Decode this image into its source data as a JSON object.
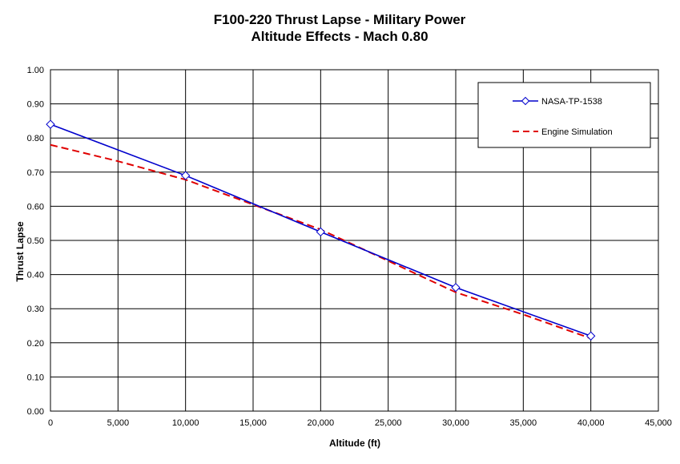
{
  "chart_data": {
    "type": "line",
    "title": "F100-220 Thrust Lapse - Military Power",
    "subtitle": "Altitude Effects - Mach 0.80",
    "xlabel": "Altitude (ft)",
    "ylabel": "Thrust Lapse",
    "xlim": [
      0,
      45000
    ],
    "ylim": [
      0,
      1.0
    ],
    "x_ticks": [
      0,
      5000,
      10000,
      15000,
      20000,
      25000,
      30000,
      35000,
      40000,
      45000
    ],
    "x_tick_labels": [
      "0",
      "5,000",
      "10,000",
      "15,000",
      "20,000",
      "25,000",
      "30,000",
      "35,000",
      "40,000",
      "45,000"
    ],
    "y_ticks": [
      0,
      0.1,
      0.2,
      0.3,
      0.4,
      0.5,
      0.6,
      0.7,
      0.8,
      0.9,
      1.0
    ],
    "y_tick_labels": [
      "0.00",
      "0.10",
      "0.20",
      "0.30",
      "0.40",
      "0.50",
      "0.60",
      "0.70",
      "0.80",
      "0.90",
      "1.00"
    ],
    "grid": true,
    "legend_position": "top-right",
    "series": [
      {
        "name": "NASA-TP-1538",
        "color": "#0000cc",
        "style": "solid",
        "marker": "diamond",
        "x": [
          0,
          10000,
          20000,
          30000,
          40000
        ],
        "y": [
          0.84,
          0.69,
          0.525,
          0.362,
          0.22
        ]
      },
      {
        "name": "Engine Simulation",
        "color": "#e00000",
        "style": "dashed",
        "marker": "none",
        "x": [
          0,
          5000,
          10000,
          15000,
          20000,
          25000,
          30000,
          35000,
          40000
        ],
        "y": [
          0.78,
          0.732,
          0.678,
          0.605,
          0.532,
          0.44,
          0.348,
          0.283,
          0.213
        ]
      }
    ]
  }
}
